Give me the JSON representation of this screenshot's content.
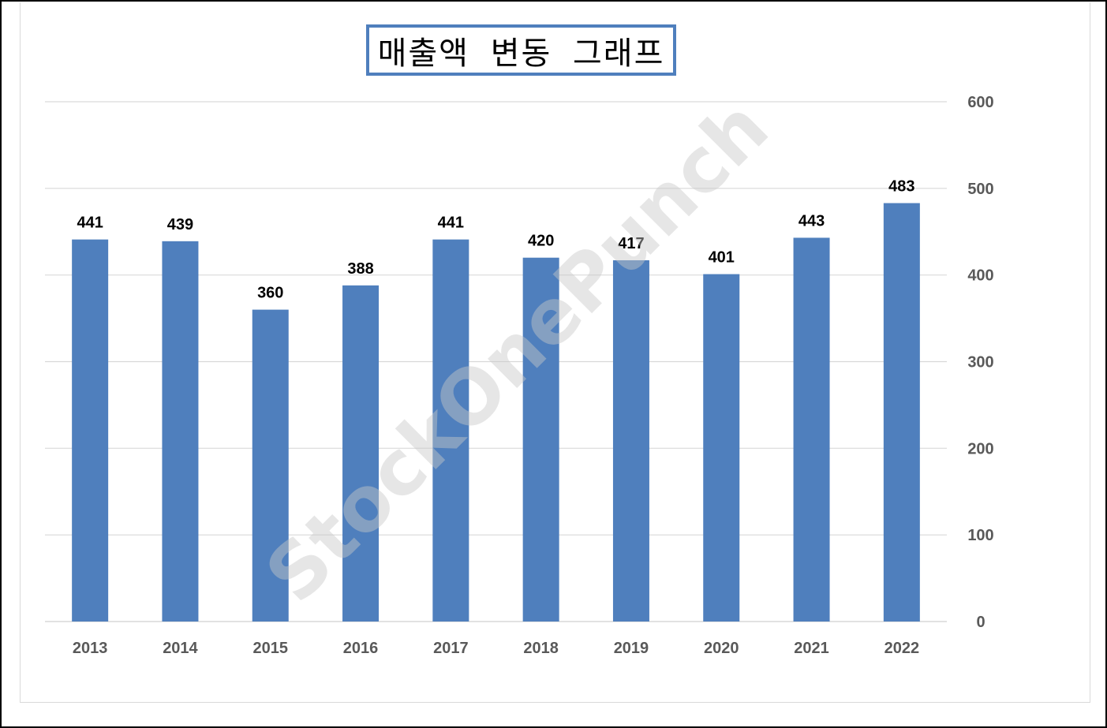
{
  "chart_data": {
    "type": "bar",
    "title": "매출액 변동 그래프",
    "categories": [
      "2013",
      "2014",
      "2015",
      "2016",
      "2017",
      "2018",
      "2019",
      "2020",
      "2021",
      "2022"
    ],
    "series": [
      {
        "values": [
          441,
          439,
          360,
          388,
          441,
          420,
          417,
          401,
          443,
          483
        ]
      }
    ],
    "data_labels": [
      "441",
      "439",
      "360",
      "388",
      "441",
      "420",
      "417",
      "401",
      "443",
      "483"
    ],
    "ylim": [
      0,
      600
    ],
    "y_ticks": [
      0,
      100,
      200,
      300,
      400,
      500,
      600
    ],
    "y_tick_labels": [
      "0",
      "100",
      "200",
      "300",
      "400",
      "500",
      "600"
    ],
    "y_axis_side": "right",
    "grid": true,
    "legend": "none",
    "bar_color": "#4f7fbd",
    "grid_color": "#d9d9d9",
    "title_border_color": "#4f7fbd"
  },
  "watermark": {
    "text": "StockOnePunch"
  }
}
